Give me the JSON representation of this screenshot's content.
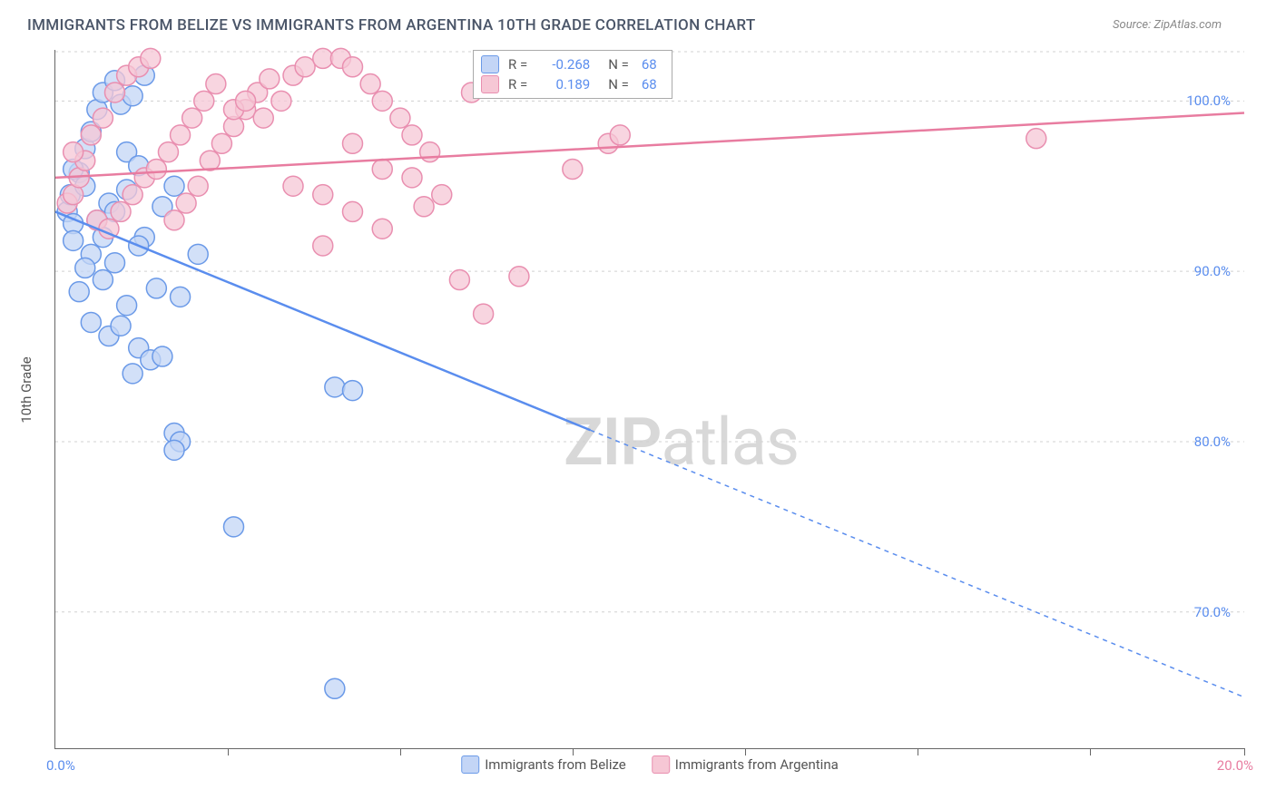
{
  "title": "IMMIGRANTS FROM BELIZE VS IMMIGRANTS FROM ARGENTINA 10TH GRADE CORRELATION CHART",
  "source_prefix": "Source: ",
  "source_name": "ZipAtlas.com",
  "watermark": {
    "bold": "ZIP",
    "rest": "atlas"
  },
  "y_axis_title": "10th Grade",
  "chart": {
    "type": "scatter",
    "xlim": [
      0,
      20
    ],
    "ylim": [
      62,
      103
    ],
    "x_ticks": [
      0,
      20
    ],
    "x_tick_labels": [
      "0.0%",
      "20.0%"
    ],
    "x_minor_ticks": [
      2.9,
      5.8,
      8.7,
      11.6,
      14.5,
      17.4
    ],
    "y_ticks": [
      70,
      80,
      90,
      100
    ],
    "y_tick_labels": [
      "70.0%",
      "80.0%",
      "90.0%",
      "100.0%"
    ],
    "grid_color": "#d0d0d0",
    "background_color": "#ffffff",
    "marker_radius": 11,
    "marker_stroke_width": 1.5,
    "line_width": 2.5,
    "series": [
      {
        "name": "Immigrants from Belize",
        "color": "#5a8dee",
        "fill": "#c3d5f6",
        "stroke": "#6b9ae8",
        "R": "-0.268",
        "N": "68",
        "trend": {
          "x1": 0,
          "y1": 93.5,
          "x2": 20,
          "y2": 65,
          "solid_until_x": 9
        },
        "points": [
          [
            0.2,
            93.5
          ],
          [
            0.3,
            92.8
          ],
          [
            0.25,
            94.5
          ],
          [
            0.4,
            95.8
          ],
          [
            0.5,
            97.2
          ],
          [
            0.3,
            96.0
          ],
          [
            0.6,
            98.2
          ],
          [
            0.7,
            99.5
          ],
          [
            0.8,
            100.5
          ],
          [
            1.0,
            101.2
          ],
          [
            1.1,
            99.8
          ],
          [
            1.3,
            100.3
          ],
          [
            1.5,
            101.5
          ],
          [
            1.2,
            97.0
          ],
          [
            1.4,
            96.2
          ],
          [
            0.9,
            94.0
          ],
          [
            0.6,
            91.0
          ],
          [
            0.5,
            90.2
          ],
          [
            0.8,
            89.5
          ],
          [
            0.4,
            88.8
          ],
          [
            0.3,
            91.8
          ],
          [
            0.7,
            93.0
          ],
          [
            1.0,
            90.5
          ],
          [
            1.2,
            88.0
          ],
          [
            1.5,
            92.0
          ],
          [
            1.8,
            93.8
          ],
          [
            2.0,
            95.0
          ],
          [
            1.7,
            89.0
          ],
          [
            1.4,
            91.5
          ],
          [
            0.6,
            87.0
          ],
          [
            0.9,
            86.2
          ],
          [
            1.1,
            86.8
          ],
          [
            1.4,
            85.5
          ],
          [
            1.6,
            84.8
          ],
          [
            1.3,
            84.0
          ],
          [
            1.8,
            85.0
          ],
          [
            2.1,
            88.5
          ],
          [
            2.4,
            91.0
          ],
          [
            0.5,
            95.0
          ],
          [
            0.8,
            92.0
          ],
          [
            1.0,
            93.5
          ],
          [
            1.2,
            94.8
          ],
          [
            2.0,
            80.5
          ],
          [
            2.1,
            80.0
          ],
          [
            2.0,
            79.5
          ],
          [
            4.7,
            83.2
          ],
          [
            5.0,
            83.0
          ],
          [
            3.0,
            75.0
          ],
          [
            4.7,
            65.5
          ]
        ]
      },
      {
        "name": "Immigrants from Argentina",
        "color": "#e87ca0",
        "fill": "#f6c7d5",
        "stroke": "#e98fb0",
        "R": "0.189",
        "N": "68",
        "trend": {
          "x1": 0,
          "y1": 95.5,
          "x2": 20,
          "y2": 99.3,
          "solid_until_x": 20
        },
        "points": [
          [
            0.2,
            94.0
          ],
          [
            0.3,
            94.5
          ],
          [
            0.4,
            95.5
          ],
          [
            0.5,
            96.5
          ],
          [
            0.3,
            97.0
          ],
          [
            0.6,
            98.0
          ],
          [
            0.8,
            99.0
          ],
          [
            1.0,
            100.5
          ],
          [
            1.2,
            101.5
          ],
          [
            1.4,
            102.0
          ],
          [
            1.6,
            102.5
          ],
          [
            0.7,
            93.0
          ],
          [
            0.9,
            92.5
          ],
          [
            1.1,
            93.5
          ],
          [
            1.3,
            94.5
          ],
          [
            1.5,
            95.5
          ],
          [
            1.7,
            96.0
          ],
          [
            1.9,
            97.0
          ],
          [
            2.1,
            98.0
          ],
          [
            2.3,
            99.0
          ],
          [
            2.5,
            100.0
          ],
          [
            2.7,
            101.0
          ],
          [
            2.0,
            93.0
          ],
          [
            2.2,
            94.0
          ],
          [
            2.4,
            95.0
          ],
          [
            2.6,
            96.5
          ],
          [
            2.8,
            97.5
          ],
          [
            3.0,
            98.5
          ],
          [
            3.2,
            99.5
          ],
          [
            3.4,
            100.5
          ],
          [
            3.6,
            101.3
          ],
          [
            3.0,
            99.5
          ],
          [
            3.2,
            100.0
          ],
          [
            3.5,
            99.0
          ],
          [
            3.8,
            100.0
          ],
          [
            4.0,
            101.5
          ],
          [
            4.2,
            102.0
          ],
          [
            4.5,
            102.5
          ],
          [
            4.8,
            102.5
          ],
          [
            5.0,
            102.0
          ],
          [
            5.3,
            101.0
          ],
          [
            5.5,
            100.0
          ],
          [
            5.8,
            99.0
          ],
          [
            6.0,
            98.0
          ],
          [
            6.3,
            97.0
          ],
          [
            4.0,
            95.0
          ],
          [
            4.5,
            94.5
          ],
          [
            5.0,
            93.5
          ],
          [
            5.5,
            92.5
          ],
          [
            6.0,
            95.5
          ],
          [
            5.0,
            97.5
          ],
          [
            5.5,
            96.0
          ],
          [
            6.2,
            93.8
          ],
          [
            6.5,
            94.5
          ],
          [
            4.5,
            91.5
          ],
          [
            7.0,
            100.5
          ],
          [
            7.4,
            102.0
          ],
          [
            8.7,
            96.0
          ],
          [
            9.3,
            97.5
          ],
          [
            9.5,
            98.0
          ],
          [
            6.8,
            89.5
          ],
          [
            7.8,
            89.7
          ],
          [
            7.2,
            87.5
          ],
          [
            16.5,
            97.8
          ]
        ]
      }
    ]
  },
  "legend_stats_labels": {
    "R": "R =",
    "N": "N ="
  }
}
